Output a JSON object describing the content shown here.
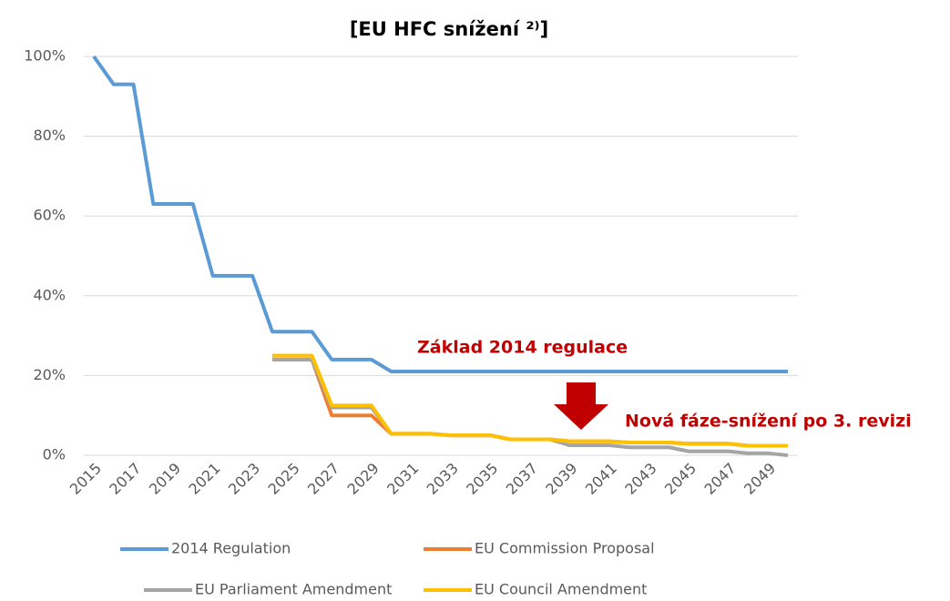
{
  "chart_data": {
    "type": "line",
    "title": "[EU HFC snížení ²⁾]",
    "x": [
      2015,
      2016,
      2017,
      2018,
      2019,
      2020,
      2021,
      2022,
      2023,
      2024,
      2025,
      2026,
      2027,
      2028,
      2029,
      2030,
      2031,
      2032,
      2033,
      2034,
      2035,
      2036,
      2037,
      2038,
      2039,
      2040,
      2041,
      2042,
      2043,
      2044,
      2045,
      2046,
      2047,
      2048,
      2049,
      2050
    ],
    "xlim": [
      2015,
      2050
    ],
    "xticks": [
      2015,
      2017,
      2019,
      2021,
      2023,
      2025,
      2027,
      2029,
      2031,
      2033,
      2035,
      2037,
      2039,
      2041,
      2043,
      2045,
      2047,
      2049
    ],
    "ylim": [
      0,
      100
    ],
    "yticks": [
      {
        "value": 0,
        "label": "0%"
      },
      {
        "value": 20,
        "label": "20%"
      },
      {
        "value": 40,
        "label": "40%"
      },
      {
        "value": 60,
        "label": "60%"
      },
      {
        "value": 80,
        "label": "80%"
      },
      {
        "value": 100,
        "label": "100%"
      }
    ],
    "grid": true,
    "series": [
      {
        "name": "2014 Regulation",
        "color": "#5b9bd5",
        "values": [
          100,
          93,
          93,
          63,
          63,
          63,
          45,
          45,
          45,
          31,
          31,
          31,
          24,
          24,
          24,
          21,
          21,
          21,
          21,
          21,
          21,
          21,
          21,
          21,
          21,
          21,
          21,
          21,
          21,
          21,
          21,
          21,
          21,
          21,
          21,
          21
        ]
      },
      {
        "name": "EU Commission Proposal",
        "color": "#ed7d31",
        "values": [
          null,
          null,
          null,
          null,
          null,
          null,
          null,
          null,
          null,
          24,
          24,
          24,
          10,
          10,
          10,
          5.4,
          5.4,
          5.4,
          5,
          5,
          5,
          4,
          4,
          4,
          3.5,
          3.5,
          3.5,
          3.2,
          3.2,
          3.2,
          2.9,
          2.9,
          2.9,
          2.4,
          2.4,
          2.4
        ]
      },
      {
        "name": "EU Parliament Amendment",
        "color": "#a5a5a5",
        "values": [
          null,
          null,
          null,
          null,
          null,
          null,
          null,
          null,
          null,
          24,
          24,
          24,
          12,
          12,
          12,
          5.4,
          5.4,
          5.4,
          5,
          5,
          5,
          4,
          4,
          4,
          2.5,
          2.5,
          2.5,
          2,
          2,
          2,
          1,
          1,
          1,
          0.5,
          0.5,
          0
        ]
      },
      {
        "name": "EU Council Amendment",
        "color": "#ffc000",
        "values": [
          null,
          null,
          null,
          null,
          null,
          null,
          null,
          null,
          null,
          25,
          25,
          25,
          12.5,
          12.5,
          12.5,
          5.4,
          5.4,
          5.4,
          5,
          5,
          5,
          4,
          4,
          4,
          3.5,
          3.5,
          3.5,
          3.2,
          3.2,
          3.2,
          2.9,
          2.9,
          2.9,
          2.4,
          2.4,
          2.4
        ]
      }
    ],
    "annotations": [
      "Základ 2014 regulace",
      "Nová fáze-snížení po 3. revizi"
    ]
  }
}
